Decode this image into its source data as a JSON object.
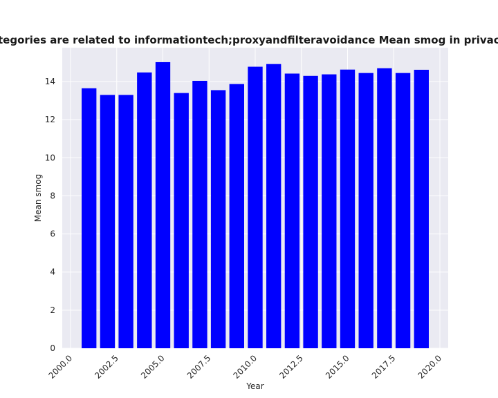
{
  "chart_data": {
    "type": "bar",
    "title": "Categories are related to informationtech;proxyandfilteravoidance Mean smog in privacy policies",
    "xlabel": "Year",
    "ylabel": "Mean smog",
    "x": [
      2001,
      2002,
      2003,
      2004,
      2005,
      2006,
      2007,
      2008,
      2009,
      2010,
      2011,
      2012,
      2013,
      2014,
      2015,
      2016,
      2017,
      2018,
      2019
    ],
    "values": [
      13.65,
      13.3,
      13.3,
      14.48,
      15.02,
      13.4,
      14.04,
      13.55,
      13.87,
      14.78,
      14.92,
      14.42,
      14.3,
      14.38,
      14.63,
      14.45,
      14.7,
      14.45,
      14.62
    ],
    "xlim": [
      1999.55,
      2020.45
    ],
    "ylim": [
      0,
      15.78
    ],
    "xticks": [
      2000.0,
      2002.5,
      2005.0,
      2007.5,
      2010.0,
      2012.5,
      2015.0,
      2017.5,
      2020.0
    ],
    "xtick_labels": [
      "2000.0",
      "2002.5",
      "2005.0",
      "2007.5",
      "2010.0",
      "2012.5",
      "2015.0",
      "2017.5",
      "2020.0"
    ],
    "yticks": [
      0,
      2,
      4,
      6,
      8,
      10,
      12,
      14
    ],
    "ytick_labels": [
      "0",
      "2",
      "4",
      "6",
      "8",
      "10",
      "12",
      "14"
    ],
    "bar_width": 0.8,
    "grid": true,
    "colors": {
      "bar": "#0000ff",
      "plot_background": "#eaeaf2",
      "grid": "#ffffff"
    }
  }
}
